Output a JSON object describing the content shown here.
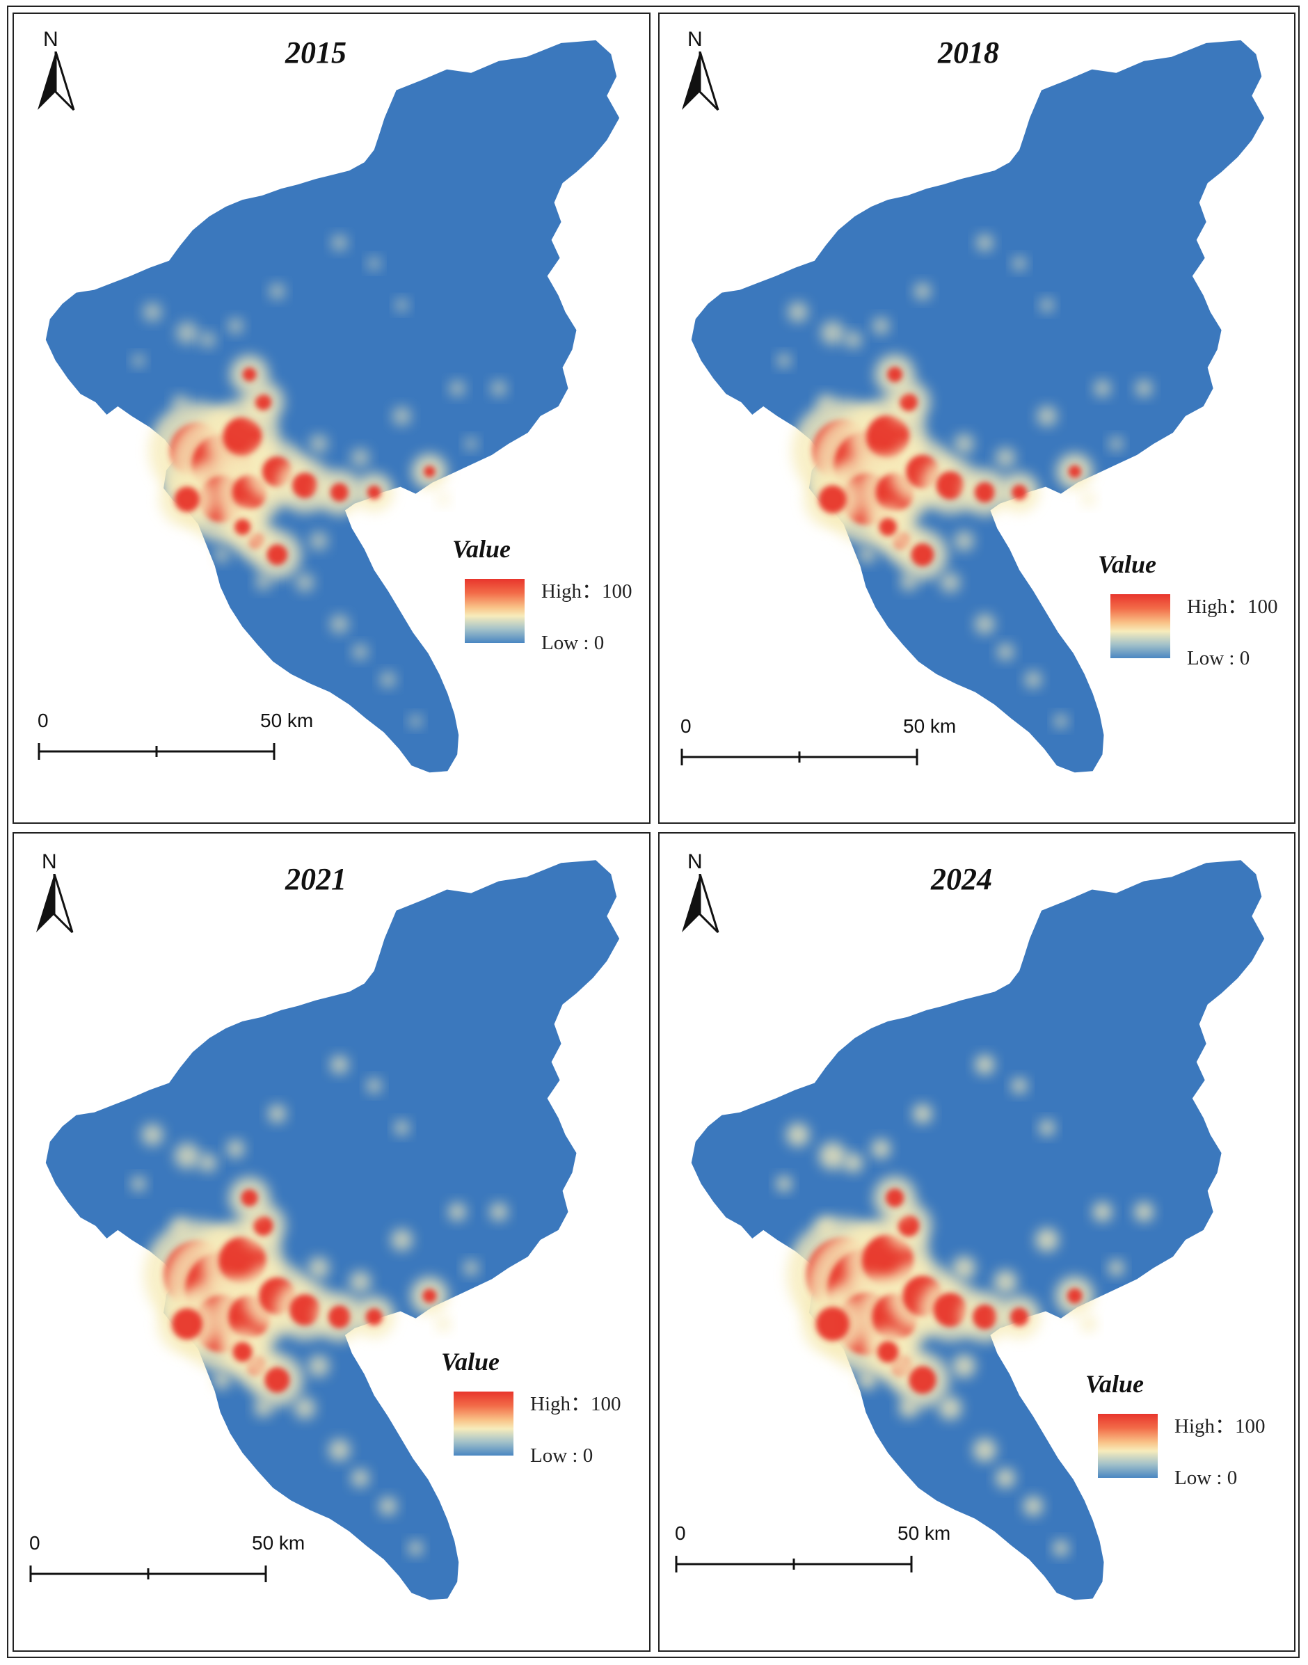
{
  "panels": [
    {
      "year": "2015",
      "north": "N",
      "legend_title": "Value",
      "legend_high": "High：100",
      "legend_low": "Low : 0",
      "scale_start": "0",
      "scale_end": "50 km",
      "relative_intensity": 0.55
    },
    {
      "year": "2018",
      "north": "N",
      "legend_title": "Value",
      "legend_high": "High：100",
      "legend_low": "Low : 0",
      "scale_start": "0",
      "scale_end": "50 km",
      "relative_intensity": 0.7
    },
    {
      "year": "2021",
      "north": "N",
      "legend_title": "Value",
      "legend_high": "High：100",
      "legend_low": "Low : 0",
      "scale_start": "0",
      "scale_end": "50 km",
      "relative_intensity": 0.85
    },
    {
      "year": "2024",
      "north": "N",
      "legend_title": "Value",
      "legend_high": "High：100",
      "legend_low": "Low : 0",
      "scale_start": "0",
      "scale_end": "50 km",
      "relative_intensity": 1.0
    }
  ],
  "legend_range": {
    "high": 100,
    "low": 0
  },
  "colors": {
    "base": "#3b78bd",
    "low": "#4a86c2",
    "mid": "#f7ecbb",
    "high": "#e8352c",
    "frame": "#222222"
  },
  "icons": {
    "north_arrow": "north-arrow-icon",
    "scale_bar": "scale-bar-icon"
  }
}
